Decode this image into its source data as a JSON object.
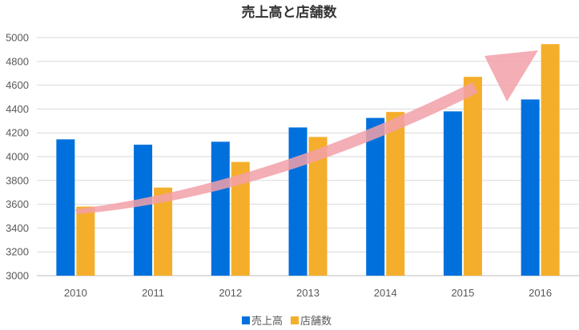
{
  "chart_data": {
    "type": "bar",
    "title": "売上高と店舗数",
    "categories": [
      "2010",
      "2011",
      "2012",
      "2013",
      "2014",
      "2015",
      "2016"
    ],
    "series": [
      {
        "name": "売上高",
        "color": "#0070dd",
        "values": [
          4145,
          4100,
          4125,
          4245,
          4325,
          4380,
          4480
        ]
      },
      {
        "name": "店舗数",
        "color": "#f5ae2b",
        "values": [
          3580,
          3740,
          3955,
          4165,
          4375,
          4670,
          4945
        ]
      }
    ],
    "ylim": [
      3000,
      5000
    ],
    "yticks": [
      3000,
      3200,
      3400,
      3600,
      3800,
      4000,
      4200,
      4400,
      4600,
      4800,
      5000
    ],
    "grid": true,
    "legend": "bottom",
    "annotation": {
      "type": "trend-arrow",
      "color": "#f2a0a8"
    }
  }
}
